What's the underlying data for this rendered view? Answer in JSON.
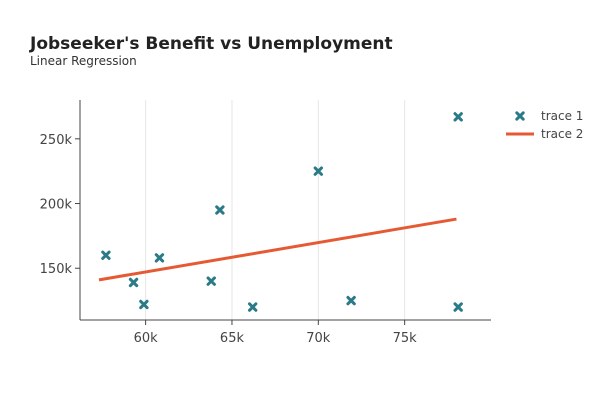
{
  "chart_data": {
    "type": "scatter",
    "title": "Jobseeker's Benefit vs Unemployment",
    "subtitle": "Linear Regression",
    "xlabel": "",
    "ylabel": "",
    "xlim": [
      56200,
      80000
    ],
    "ylim": [
      110000,
      280000
    ],
    "x_ticks": [
      {
        "value": 60000,
        "label": "60k"
      },
      {
        "value": 65000,
        "label": "65k"
      },
      {
        "value": 70000,
        "label": "70k"
      },
      {
        "value": 75000,
        "label": "75k"
      }
    ],
    "y_ticks": [
      {
        "value": 150000,
        "label": "150k"
      },
      {
        "value": 200000,
        "label": "200k"
      },
      {
        "value": 250000,
        "label": "250k"
      }
    ],
    "grid": "vertical",
    "legend_position": "top-right",
    "series": [
      {
        "name": "trace 1",
        "mode": "markers",
        "marker": "x",
        "color": "#2a7a87",
        "points": [
          {
            "x": 57700,
            "y": 160000
          },
          {
            "x": 59300,
            "y": 139000
          },
          {
            "x": 59900,
            "y": 122000
          },
          {
            "x": 60800,
            "y": 158000
          },
          {
            "x": 63800,
            "y": 140000
          },
          {
            "x": 64300,
            "y": 195000
          },
          {
            "x": 66200,
            "y": 120000
          },
          {
            "x": 70000,
            "y": 225000
          },
          {
            "x": 71900,
            "y": 125000
          },
          {
            "x": 78100,
            "y": 120000
          },
          {
            "x": 78100,
            "y": 267000
          }
        ]
      },
      {
        "name": "trace 2",
        "mode": "lines",
        "color": "#e65a33",
        "points": [
          {
            "x": 57300,
            "y": 141000
          },
          {
            "x": 78000,
            "y": 188000
          }
        ]
      }
    ]
  }
}
